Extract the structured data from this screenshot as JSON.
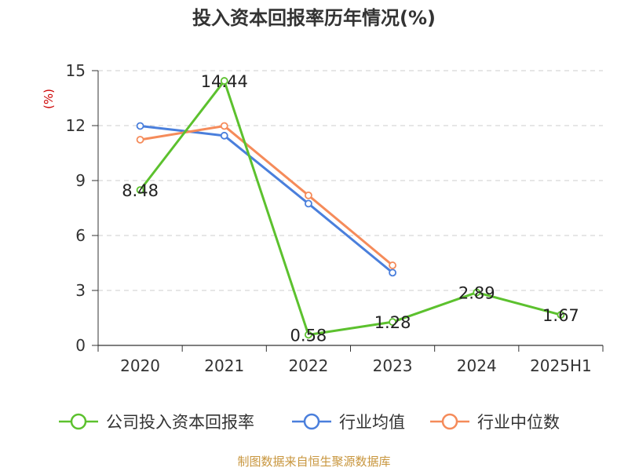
{
  "chart_data": {
    "type": "line",
    "title": "投入资本回报率历年情况(%)",
    "y_unit": "(%)",
    "categories": [
      "2020",
      "2021",
      "2022",
      "2023",
      "2024",
      "2025H1"
    ],
    "ylim": [
      0,
      15
    ],
    "y_ticks": [
      "0",
      "3",
      "6",
      "9",
      "12",
      "15"
    ],
    "grid": true,
    "legend_position": "bottom",
    "series": [
      {
        "name": "公司投入资本回报率",
        "color": "#5cc12e",
        "values": [
          8.48,
          14.44,
          0.58,
          1.28,
          2.89,
          1.67
        ],
        "labels": [
          "8.48",
          "14.44",
          "0.58",
          "1.28",
          "2.89",
          "1.67"
        ]
      },
      {
        "name": "行业均值",
        "color": "#4a7fdc",
        "values": [
          11.98,
          11.45,
          7.74,
          3.97,
          null,
          null
        ]
      },
      {
        "name": "行业中位数",
        "color": "#f58b5a",
        "values": [
          11.23,
          11.98,
          8.19,
          4.37,
          null,
          null
        ]
      }
    ],
    "source": "制图数据来自恒生聚源数据库"
  }
}
